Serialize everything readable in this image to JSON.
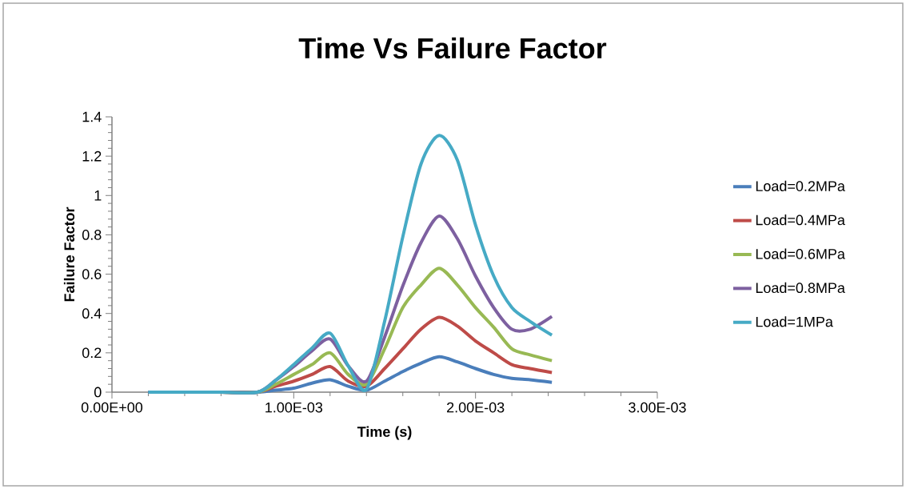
{
  "chart_data": {
    "type": "line",
    "title": "Time Vs Failure Factor",
    "xlabel": "Time (s)",
    "ylabel": "Failure Factor",
    "x": [
      0.0002,
      0.0004,
      0.0006,
      0.0008,
      0.0009,
      0.001,
      0.0011,
      0.0012,
      0.0013,
      0.0014,
      0.0015,
      0.0016,
      0.0017,
      0.0018,
      0.0019,
      0.002,
      0.0021,
      0.0022,
      0.0023,
      0.00242
    ],
    "series": [
      {
        "name": "Load=0.2MPa",
        "color": "#4a7ebb",
        "values": [
          0,
          0,
          0,
          0,
          0.01,
          0.02,
          0.046,
          0.063,
          0.03,
          0.01,
          0.056,
          0.105,
          0.147,
          0.18,
          0.154,
          0.12,
          0.09,
          0.07,
          0.063,
          0.05
        ]
      },
      {
        "name": "Load=0.4MPa",
        "color": "#be4b48",
        "values": [
          null,
          null,
          0,
          0,
          0.03,
          0.056,
          0.09,
          0.13,
          0.056,
          0.03,
          0.12,
          0.22,
          0.32,
          0.38,
          0.336,
          0.26,
          0.2,
          0.14,
          0.12,
          0.1
        ]
      },
      {
        "name": "Load=0.6MPa",
        "color": "#98b954",
        "values": [
          null,
          null,
          0,
          0,
          0.04,
          0.09,
          0.14,
          0.2,
          0.09,
          0.04,
          0.22,
          0.43,
          0.545,
          0.63,
          0.545,
          0.43,
          0.33,
          0.22,
          0.19,
          0.16
        ]
      },
      {
        "name": "Load=0.8MPa",
        "color": "#7d60a0",
        "values": [
          0,
          0,
          0,
          0,
          0.06,
          0.13,
          0.21,
          0.27,
          0.133,
          0.056,
          0.28,
          0.54,
          0.76,
          0.895,
          0.78,
          0.59,
          0.43,
          0.32,
          0.32,
          0.385
        ]
      },
      {
        "name": "Load=1MPa",
        "color": "#46aac5",
        "values": [
          0,
          0,
          0,
          0,
          0.06,
          0.14,
          0.224,
          0.3,
          0.133,
          0.014,
          0.36,
          0.79,
          1.16,
          1.305,
          1.18,
          0.85,
          0.59,
          0.43,
          0.36,
          0.29
        ]
      }
    ],
    "xlim": [
      0,
      0.003
    ],
    "ylim": [
      0,
      1.4
    ],
    "xticks": [
      {
        "value": 0,
        "label": "0.00E+00"
      },
      {
        "value": 0.001,
        "label": "1.00E-03"
      },
      {
        "value": 0.002,
        "label": "2.00E-03"
      },
      {
        "value": 0.003,
        "label": "3.00E-03"
      }
    ],
    "yticks": [
      0,
      0.2,
      0.4,
      0.6,
      0.8,
      1,
      1.2,
      1.4
    ],
    "grid": false,
    "legend": "right",
    "marker": "none",
    "line_style": "solid"
  }
}
